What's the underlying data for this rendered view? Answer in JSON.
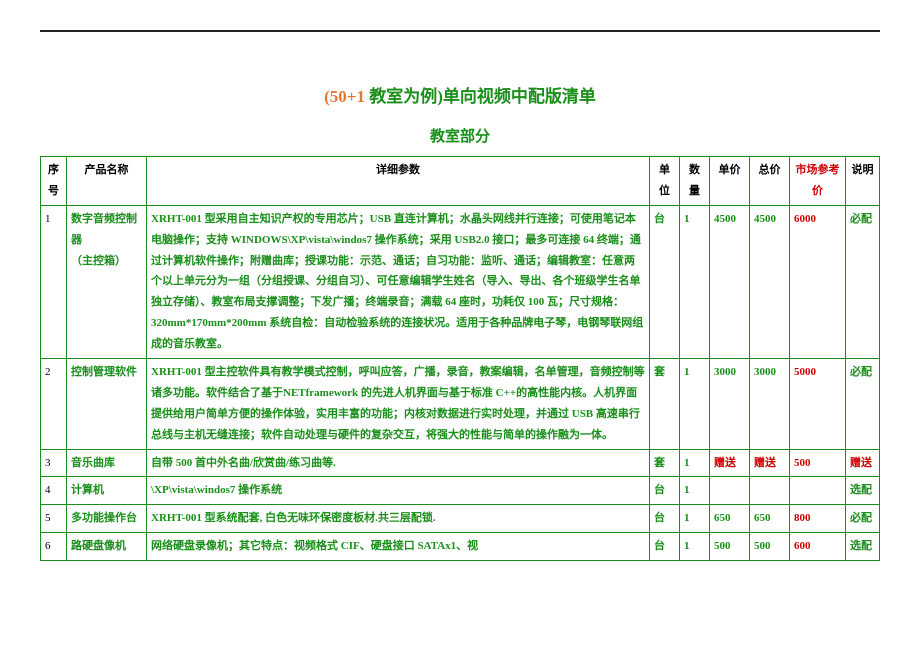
{
  "title_prefix": "(50+1",
  "title_mid": " 教室为例)",
  "title_suffix": "单向视频中配版清单",
  "subtitle": "教室部分",
  "headers": {
    "idx": "序号",
    "name": "产品名称",
    "detail": "详细参数",
    "unit": "单位",
    "qty": "数量",
    "price": "单价",
    "total": "总价",
    "ref": "市场参考价",
    "memo": "说明"
  },
  "rows": [
    {
      "idx": "1",
      "name": "数字音频控制器\n（主控箱）",
      "detail": "XRHT-001 型采用自主知识产权的专用芯片；USB 直连计算机；水晶头网线并行连接；可使用笔记本电脑操作；支持 WINDOWS\\XP\\vista\\windos7 操作系统；采用 USB2.0 接口；最多可连接 64 终端；通过计算机软件操作；附赠曲库；授课功能：示范、通话；自习功能：监听、通话；编辑教室：任意两个以上单元分为一组（分组授课、分组自习）、可任意编辑学生姓名（导入、导出、各个班级学生名单独立存储）、教室布局支撑调整；下发广播；终端录音；满载 64 座时，功耗仅 100 瓦；尺寸规格：320mm*170mm*200mm 系统自检：自动检验系统的连接状况。适用于各种品牌电子琴，电钢琴联网组成的音乐教室。",
      "unit": "台",
      "qty": "1",
      "price": "4500",
      "total": "4500",
      "ref": "6000",
      "memo": "必配"
    },
    {
      "idx": "2",
      "name": "控制管理软件",
      "detail": "XRHT-001 型主控软件具有教学模式控制，呼叫应答，广播，录音，教案编辑，名单管理，音频控制等诸多功能。软件结合了基于NETframework 的先进人机界面与基于标准 C++的高性能内核。人机界面提供给用户简单方便的操作体验，实用丰富的功能；内核对数据进行实时处理，并通过 USB 高速串行总线与主机无缝连接；软件自动处理与硬件的复杂交互，将强大的性能与简单的操作融为一体。",
      "unit": "套",
      "qty": "1",
      "price": "3000",
      "total": "3000",
      "ref": "5000",
      "memo": "必配"
    },
    {
      "idx": "3",
      "name": "音乐曲库",
      "detail": "自带 500 首中外名曲/欣赏曲/练习曲等.",
      "unit": "套",
      "qty": "1",
      "price": "赠送",
      "total": "赠送",
      "ref": "500",
      "memo": "赠送",
      "gift": true
    },
    {
      "idx": "4",
      "name": "计算机",
      "detail": "\\XP\\vista\\windos7 操作系统",
      "unit": "台",
      "qty": "1",
      "price": "",
      "total": "",
      "ref": "",
      "memo": "选配"
    },
    {
      "idx": "5",
      "name": "多功能操作台",
      "detail": "XRHT-001 型系统配套, 白色无味环保密度板材.共三层配锁.",
      "unit": "台",
      "qty": "1",
      "price": "650",
      "total": "650",
      "ref": "800",
      "memo": "必配"
    },
    {
      "idx": "6",
      "name": "路硬盘像机",
      "detail": "网络硬盘录像机；其它特点：视频格式 CIF、硬盘接口 SATAx1、视",
      "unit": "台",
      "qty": "1",
      "price": "500",
      "total": "500",
      "ref": "600",
      "memo": "选配"
    }
  ]
}
